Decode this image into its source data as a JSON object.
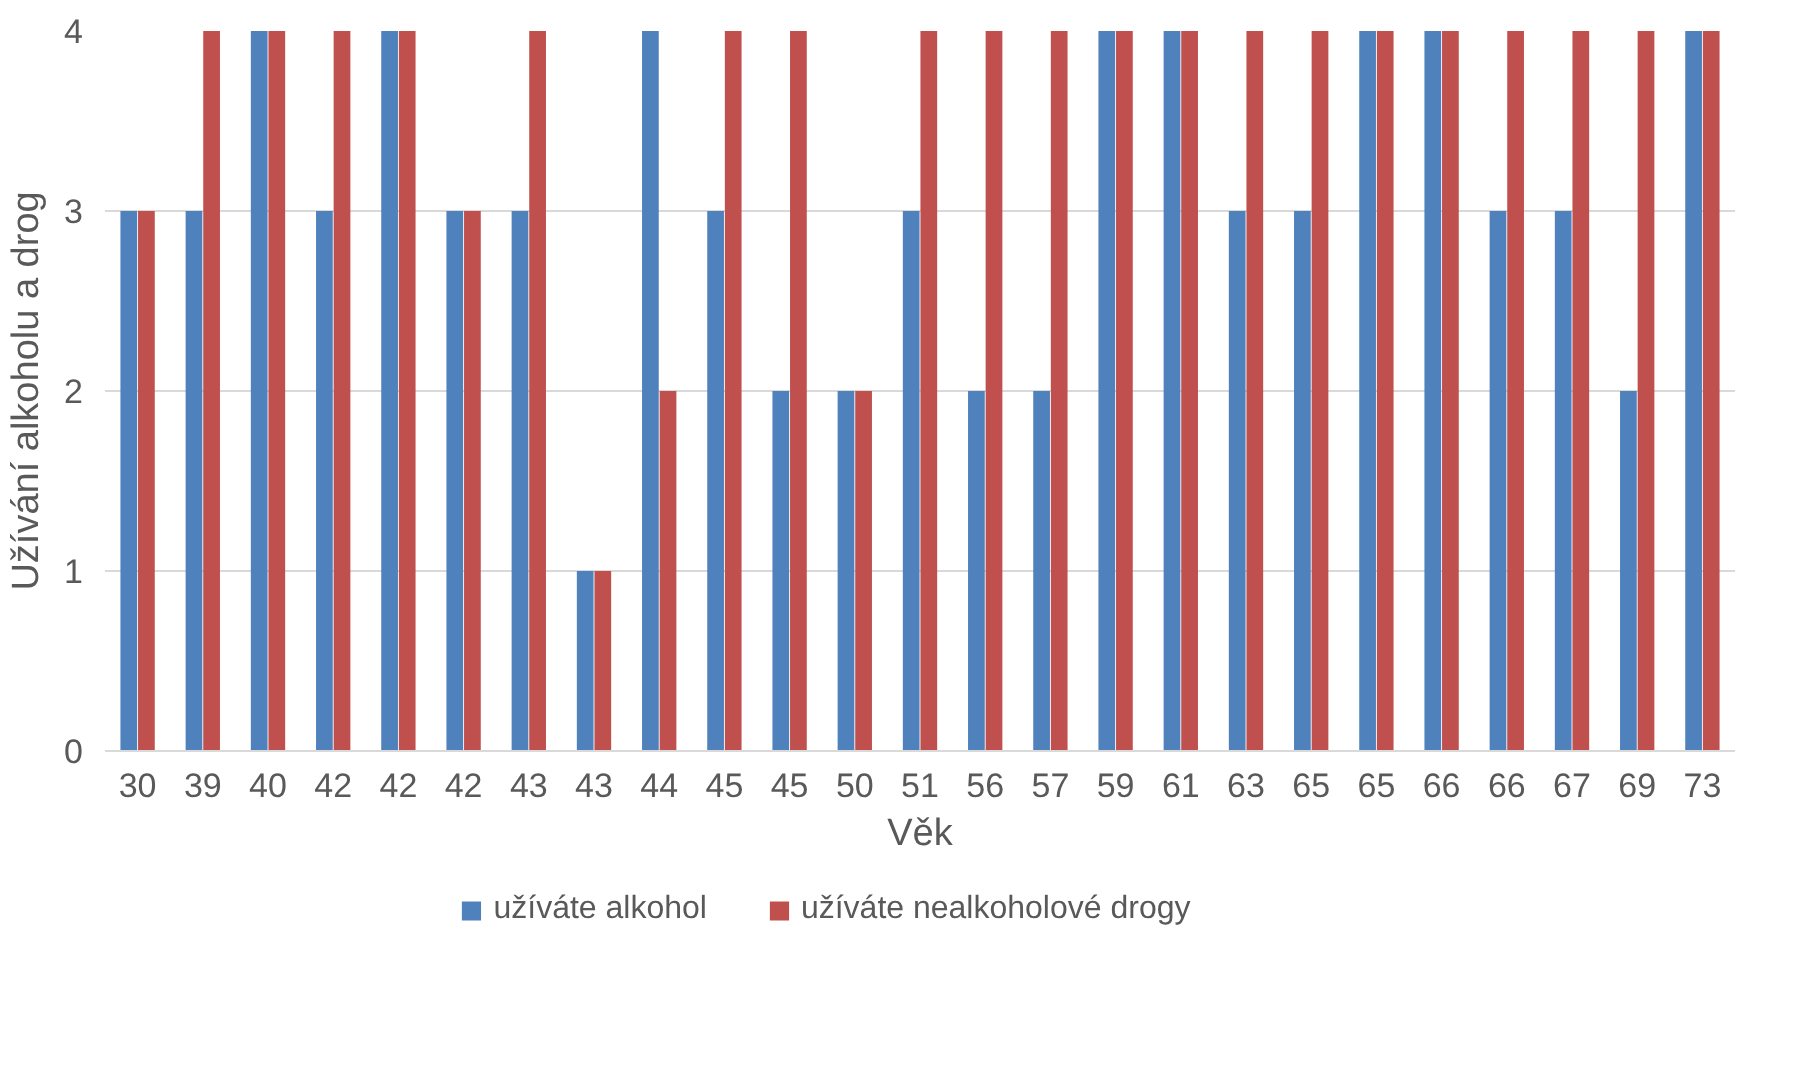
{
  "chart_data": {
    "type": "bar",
    "xlabel": "Věk",
    "ylabel": "Užívání alkoholu a drog",
    "categories": [
      "30",
      "39",
      "40",
      "42",
      "42",
      "42",
      "43",
      "43",
      "44",
      "45",
      "45",
      "50",
      "51",
      "56",
      "57",
      "59",
      "61",
      "63",
      "65",
      "65",
      "66",
      "66",
      "67",
      "69",
      "73"
    ],
    "series": [
      {
        "name": "užíváte alkohol",
        "color": "#4f81bd",
        "values": [
          3,
          3,
          4,
          3,
          4,
          3,
          3,
          1,
          4,
          3,
          2,
          2,
          3,
          2,
          2,
          4,
          4,
          3,
          3,
          4,
          4,
          3,
          3,
          2,
          4
        ]
      },
      {
        "name": "užíváte nealkoholové drogy",
        "color": "#c0504d",
        "values": [
          3,
          4,
          4,
          4,
          4,
          3,
          4,
          1,
          2,
          4,
          4,
          2,
          4,
          4,
          4,
          4,
          4,
          4,
          4,
          4,
          4,
          4,
          4,
          4,
          4
        ]
      }
    ],
    "ylim": [
      0,
      4
    ],
    "yticks": [
      0,
      1,
      2,
      3,
      4
    ],
    "grid": "y",
    "legend": "bottom"
  }
}
